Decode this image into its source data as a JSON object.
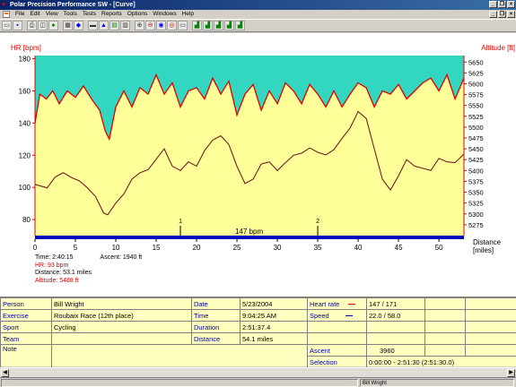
{
  "window": {
    "title": "Polar Precision Performance SW - [Curve]",
    "title_buttons": [
      "_",
      "❐",
      "×"
    ],
    "doc_buttons": [
      "_",
      "❐",
      "×"
    ]
  },
  "menu": [
    "File",
    "Edit",
    "View",
    "Tools",
    "Tests",
    "Reports",
    "Options",
    "Windows",
    "Help"
  ],
  "toolbar": {
    "icons": [
      "open-icon",
      "save-icon",
      "print-icon",
      "preview-icon",
      "globe-icon",
      "calendar-icon",
      "notebook-icon",
      "folder-icon",
      "mountain-icon",
      "chart-icon",
      "bars-icon",
      "zoom-in-icon",
      "zoom-out-icon",
      "zoom-a-icon",
      "zoom-b-icon",
      "ruler-icon",
      "chart-a-icon",
      "chart-b-icon",
      "chart-c-icon",
      "chart-d-icon",
      "chart-e-icon"
    ]
  },
  "chart_data": {
    "type": "line",
    "left_axis_label": "HR [bpm]",
    "right_axis_label": "Altitude [ft]",
    "x_axis_label": "Distance [miles]",
    "hr_range": [
      70,
      182
    ],
    "alt_range": [
      5250,
      5665
    ],
    "x_range": [
      0,
      53.1
    ],
    "hr_ticks": [
      80,
      100,
      120,
      140,
      160,
      180
    ],
    "alt_ticks": [
      5275,
      5300,
      5325,
      5350,
      5375,
      5400,
      5425,
      5450,
      5475,
      5500,
      5525,
      5550,
      5575,
      5600,
      5625,
      5650
    ],
    "x_ticks": [
      0,
      5,
      10,
      15,
      20,
      25,
      30,
      35,
      40,
      45,
      50
    ],
    "markers": [
      {
        "label": "1",
        "x": 18
      },
      {
        "label": "2",
        "x": 35
      }
    ],
    "limit_band_label": "147 bpm",
    "colors": {
      "altitude_fill": "#ffff9a",
      "above_fill": "#33d6c0",
      "hr_line": "#e00000",
      "altitude_line": "#702020",
      "axis_left": "#e00000",
      "axis_right": "#e00000",
      "bottom_bar": "#0000c0"
    },
    "series": [
      {
        "name": "HR",
        "points": [
          [
            0,
            140
          ],
          [
            0.6,
            158
          ],
          [
            1.4,
            155
          ],
          [
            2.2,
            160
          ],
          [
            3,
            152
          ],
          [
            4,
            160
          ],
          [
            5,
            156
          ],
          [
            6,
            163
          ],
          [
            7,
            155
          ],
          [
            8,
            148
          ],
          [
            8.7,
            135
          ],
          [
            9.2,
            130
          ],
          [
            10,
            150
          ],
          [
            11,
            160
          ],
          [
            12,
            150
          ],
          [
            13,
            162
          ],
          [
            14,
            158
          ],
          [
            15,
            170
          ],
          [
            16,
            158
          ],
          [
            17,
            165
          ],
          [
            18,
            150
          ],
          [
            19,
            160
          ],
          [
            20,
            162
          ],
          [
            21,
            155
          ],
          [
            22,
            168
          ],
          [
            23,
            158
          ],
          [
            24,
            166
          ],
          [
            25,
            145
          ],
          [
            26,
            158
          ],
          [
            27,
            164
          ],
          [
            28,
            148
          ],
          [
            29,
            160
          ],
          [
            30,
            152
          ],
          [
            31,
            165
          ],
          [
            32,
            160
          ],
          [
            33,
            152
          ],
          [
            34,
            164
          ],
          [
            35,
            158
          ],
          [
            36,
            150
          ],
          [
            37,
            160
          ],
          [
            38,
            150
          ],
          [
            39,
            158
          ],
          [
            40,
            165
          ],
          [
            41,
            162
          ],
          [
            42,
            150
          ],
          [
            43,
            160
          ],
          [
            44,
            158
          ],
          [
            45,
            164
          ],
          [
            46,
            155
          ],
          [
            47,
            160
          ],
          [
            48,
            165
          ],
          [
            49,
            168
          ],
          [
            50,
            160
          ],
          [
            51,
            170
          ],
          [
            52,
            155
          ],
          [
            53.1,
            168
          ]
        ]
      },
      {
        "name": "Altitude",
        "points": [
          [
            0,
            5368
          ],
          [
            1.5,
            5360
          ],
          [
            2.5,
            5385
          ],
          [
            3.5,
            5395
          ],
          [
            4.5,
            5384
          ],
          [
            5.5,
            5376
          ],
          [
            6.5,
            5360
          ],
          [
            7.5,
            5340
          ],
          [
            8.5,
            5302
          ],
          [
            9,
            5298
          ],
          [
            10,
            5325
          ],
          [
            11,
            5346
          ],
          [
            12,
            5380
          ],
          [
            13,
            5395
          ],
          [
            14,
            5402
          ],
          [
            15,
            5426
          ],
          [
            16,
            5450
          ],
          [
            17,
            5410
          ],
          [
            18,
            5400
          ],
          [
            19,
            5420
          ],
          [
            20,
            5410
          ],
          [
            21,
            5446
          ],
          [
            22,
            5470
          ],
          [
            23,
            5480
          ],
          [
            24,
            5460
          ],
          [
            25,
            5410
          ],
          [
            26,
            5370
          ],
          [
            27,
            5380
          ],
          [
            28,
            5415
          ],
          [
            29,
            5420
          ],
          [
            30,
            5400
          ],
          [
            31,
            5418
          ],
          [
            32,
            5435
          ],
          [
            33,
            5440
          ],
          [
            34,
            5452
          ],
          [
            35,
            5442
          ],
          [
            36,
            5436
          ],
          [
            37,
            5448
          ],
          [
            38,
            5474
          ],
          [
            39,
            5498
          ],
          [
            40,
            5536
          ],
          [
            41,
            5520
          ],
          [
            42,
            5450
          ],
          [
            43,
            5380
          ],
          [
            44,
            5355
          ],
          [
            45,
            5388
          ],
          [
            46,
            5425
          ],
          [
            47,
            5410
          ],
          [
            48,
            5405
          ],
          [
            49,
            5400
          ],
          [
            50,
            5428
          ],
          [
            51,
            5420
          ],
          [
            52,
            5418
          ],
          [
            53.1,
            5438
          ]
        ]
      }
    ]
  },
  "summary": {
    "time": "Time: 2:40:15",
    "ascent": "Ascent: 1940 ft",
    "hr": "HR: 93 bpm",
    "distance": "Distance: 53.1 miles",
    "altitude": "Altitude: 5488 ft"
  },
  "details": {
    "person_label": "Person",
    "person": "Bill Wright",
    "exercise_label": "Exercise",
    "exercise": "Roubaix Race (12th place)",
    "sport_label": "Sport",
    "sport": "Cycling",
    "team_label": "Team",
    "team": "",
    "note_label": "Note",
    "note": "",
    "date_label": "Date",
    "date": "5/23/2004",
    "time_label": "Time",
    "time": "9:04:25 AM",
    "duration_label": "Duration",
    "duration": "2:51:37.4",
    "distance_label": "Distance",
    "distance": "54.1 miles",
    "heart_rate_label": "Heart rate",
    "heart_rate": "147 / 171",
    "speed_label": "Speed",
    "speed": "22.0 / 58.0",
    "ascent_label": "Ascent",
    "ascent": "3960",
    "selection_label": "Selection",
    "selection": "0:00:00 - 2:51:30 (2:51:30.0)"
  },
  "status": {
    "user": "Bill Wright"
  }
}
